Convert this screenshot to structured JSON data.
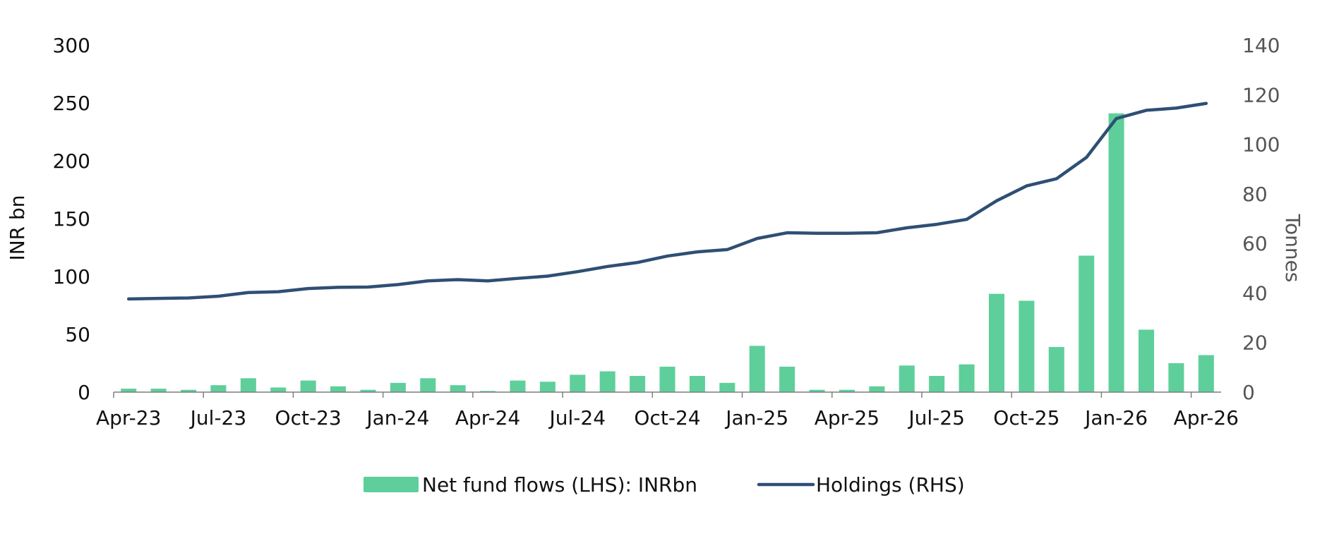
{
  "chart_data": {
    "type": "bar",
    "categories": [
      "Apr-23",
      "May-23",
      "Jun-23",
      "Jul-23",
      "Aug-23",
      "Sep-23",
      "Oct-23",
      "Nov-23",
      "Dec-23",
      "Jan-24",
      "Feb-24",
      "Mar-24",
      "Apr-24",
      "May-24",
      "Jun-24",
      "Jul-24",
      "Aug-24",
      "Sep-24",
      "Oct-24",
      "Nov-24",
      "Dec-24",
      "Jan-25",
      "Feb-25",
      "Mar-25",
      "Apr-25",
      "May-25",
      "Jun-25",
      "Jul-25",
      "Aug-25",
      "Sep-25",
      "Oct-25",
      "Nov-25",
      "Dec-25",
      "Jan-26",
      "Feb-26",
      "Mar-26",
      "Apr-26"
    ],
    "x_tick_labels": [
      "Apr-23",
      "Jul-23",
      "Oct-23",
      "Jan-24",
      "Apr-24",
      "Jul-24",
      "Oct-24",
      "Jan-25",
      "Apr-25",
      "Jul-25",
      "Oct-25",
      "Jan-26",
      "Apr-26"
    ],
    "series": [
      {
        "name": "Net fund flows (LHS): INRbn",
        "kind": "bar",
        "axis": "left",
        "color": "#5ecf9a",
        "values": [
          3,
          3,
          2,
          6,
          12,
          4,
          10,
          5,
          2,
          8,
          12,
          6,
          1,
          10,
          9,
          15,
          18,
          14,
          22,
          14,
          8,
          40,
          22,
          2,
          2,
          5,
          23,
          14,
          24,
          85,
          79,
          39,
          118,
          241,
          54,
          25,
          32
        ]
      },
      {
        "name": "Holdings (RHS)",
        "kind": "line",
        "axis": "right",
        "color": "#2f4f74",
        "values": [
          37.6,
          37.8,
          38.0,
          38.7,
          40.2,
          40.5,
          41.8,
          42.3,
          42.4,
          43.4,
          44.9,
          45.4,
          44.9,
          45.9,
          46.8,
          48.6,
          50.7,
          52.3,
          54.9,
          56.6,
          57.5,
          62.0,
          64.3,
          64.1,
          64.1,
          64.3,
          66.3,
          67.7,
          69.7,
          77.2,
          83.2,
          86.1,
          94.7,
          110.4,
          113.7,
          114.6,
          116.5
        ]
      }
    ],
    "y_left": {
      "label": "INR bn",
      "ticks": [
        0,
        50,
        100,
        150,
        200,
        250,
        300
      ],
      "range": [
        0,
        300
      ]
    },
    "y_right": {
      "label": "Tonnes",
      "ticks": [
        0,
        20,
        40,
        60,
        80,
        100,
        120,
        140
      ],
      "range": [
        0,
        140
      ]
    },
    "legend_position": "bottom-center",
    "grid": false
  }
}
